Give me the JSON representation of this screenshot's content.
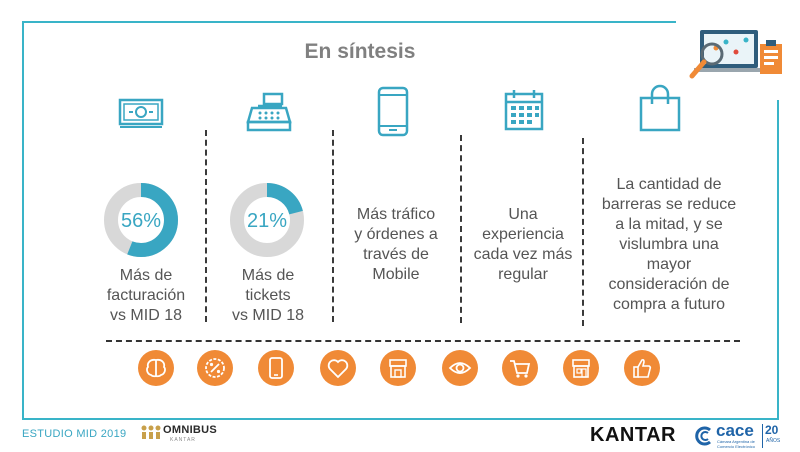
{
  "title": "En síntesis",
  "colors": {
    "frame": "#39b4c8",
    "accent": "#f08a36",
    "donut_fill": "#39a6c2",
    "donut_track": "#d8d8d8"
  },
  "columns": [
    {
      "icon": "money-bill-icon",
      "percent_label": "56%",
      "percent_value": 56,
      "lines": [
        "Más de",
        "facturación",
        "vs MID 18"
      ]
    },
    {
      "icon": "cash-register-icon",
      "percent_label": "21%",
      "percent_value": 21,
      "lines": [
        "Más de",
        "tickets",
        "vs MID 18"
      ]
    },
    {
      "icon": "mobile-phone-icon",
      "lines": [
        "Más tráfico",
        "y órdenes a",
        "través de",
        "Mobile"
      ]
    },
    {
      "icon": "calendar-icon",
      "lines": [
        "Una",
        "experiencia",
        "cada vez más",
        "regular"
      ]
    },
    {
      "icon": "shopping-bag-icon",
      "lines": [
        "La cantidad de",
        "barreras se reduce",
        "a la mitad, y se",
        "vislumbra una",
        "mayor",
        "consideración de",
        "compra a futuro"
      ]
    }
  ],
  "bottom_icons": [
    "brain-icon",
    "discount-icon",
    "mobile-icon",
    "heart-icon",
    "store-icon",
    "eye-icon",
    "cart-icon",
    "shop-icon",
    "thumbs-up-icon"
  ],
  "footer": {
    "study": "ESTUDIO MID 2019",
    "omnibus": "OMNIBUS",
    "omnibus_sub": "KANTAR",
    "kantar": "KANTAR",
    "cace": "cace",
    "cace_sub": "Cámara Argentina de Comercio Electrónico",
    "anos_num": "20",
    "anos_label": "AÑOS"
  }
}
